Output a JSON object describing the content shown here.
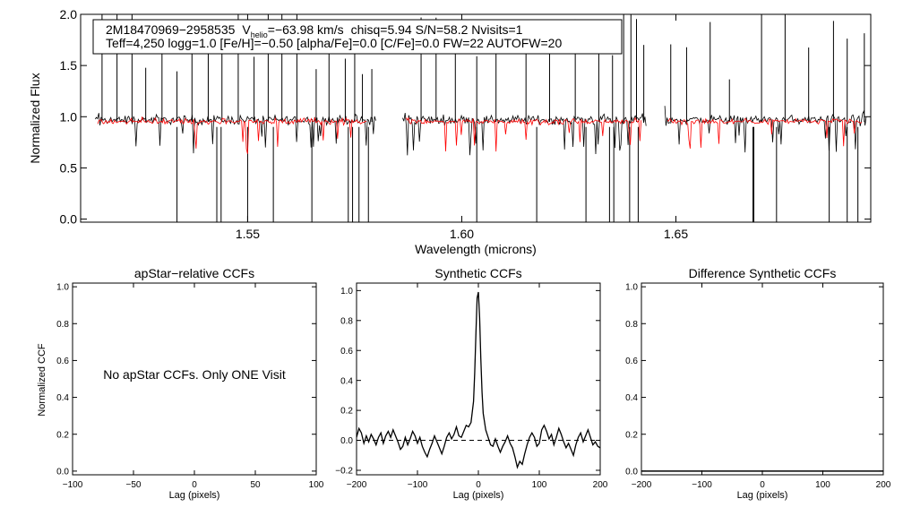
{
  "chart_data": [
    {
      "type": "line",
      "title": "",
      "header": {
        "star_id": "2M18470969−2958535",
        "v_symbol": "V",
        "v_sub": "helio",
        "v_value": "=−63.98 km/s",
        "stats": "chisq=5.94  S/N=58.2  Nvisits=1",
        "params": "Teff=4,250 logg=1.0 [Fe/H]=−0.50 [alpha/Fe]=0.0 [C/Fe]=0.0 FW=22 AUTOFW=20"
      },
      "xlabel": "Wavelength (microns)",
      "ylabel": "Normalized Flux",
      "xlim": [
        1.511,
        1.6955
      ],
      "ylim": [
        -0.03,
        2.0
      ],
      "xticks": [
        1.55,
        1.6,
        1.65
      ],
      "xtick_labels": [
        "1.55",
        "1.60",
        "1.65"
      ],
      "yticks": [
        0.0,
        0.5,
        1.0,
        1.5,
        2.0
      ],
      "ytick_labels": [
        "0.0",
        "0.5",
        "1.0",
        "1.5",
        "2.0"
      ],
      "chip_ranges": [
        [
          1.5144,
          1.5801
        ],
        [
          1.5862,
          1.6432
        ],
        [
          1.6474,
          1.6945
        ]
      ],
      "model_ranges": [
        [
          1.515,
          1.578
        ],
        [
          1.587,
          1.642
        ],
        [
          1.648,
          1.6935
        ]
      ],
      "spikes_up": [
        1.516,
        1.5195,
        1.523,
        1.5262,
        1.53,
        1.5335,
        1.537,
        1.5408,
        1.544,
        1.5478,
        1.5515,
        1.5548,
        1.558,
        1.5615,
        1.566,
        1.569,
        1.5728,
        1.575,
        1.5768,
        1.579,
        1.5905,
        1.594,
        1.5985,
        1.6035,
        1.608,
        1.615,
        1.6205,
        1.6265,
        1.632,
        1.6352,
        1.6378,
        1.6395,
        1.6408,
        1.6425,
        1.6488,
        1.6525,
        1.658,
        1.6625,
        1.67,
        1.6755,
        1.681,
        1.6868,
        1.69,
        1.694
      ],
      "spikes_down": [
        1.5335,
        1.5428,
        1.5438,
        1.55,
        1.556,
        1.565,
        1.5735,
        1.5745,
        1.576,
        1.5782,
        1.6035,
        1.6175,
        1.629,
        1.6345,
        1.6355,
        1.6392,
        1.6412,
        1.668,
        1.6682,
        1.6735,
        1.6858,
        1.69,
        1.6925
      ],
      "series": [
        {
          "name": "observed flux",
          "color": "#000000"
        },
        {
          "name": "best-fit model",
          "color": "#ff0000"
        }
      ]
    },
    {
      "type": "line",
      "title": "apStar−relative CCFs",
      "xlabel": "Lag (pixels)",
      "ylabel": "Normalized CCF",
      "xlim": [
        -100,
        100
      ],
      "ylim": [
        -0.02,
        1.02
      ],
      "xticks": [
        -100,
        -50,
        0,
        50,
        100
      ],
      "xtick_labels": [
        "−100",
        "−50",
        "0",
        "50",
        "100"
      ],
      "yticks": [
        0.0,
        0.2,
        0.4,
        0.6,
        0.8,
        1.0
      ],
      "ytick_labels": [
        "0.0",
        "0.2",
        "0.4",
        "0.6",
        "0.8",
        "1.0"
      ],
      "annotation": "No apStar CCFs.  Only ONE Visit",
      "series": []
    },
    {
      "type": "line",
      "title": "Synthetic CCFs",
      "xlabel": "Lag (pixels)",
      "ylabel": "",
      "xlim": [
        -200,
        200
      ],
      "ylim": [
        -0.23,
        1.05
      ],
      "xticks": [
        -200,
        -100,
        0,
        100,
        200
      ],
      "xtick_labels": [
        "−200",
        "−100",
        "0",
        "100",
        "200"
      ],
      "yticks": [
        -0.2,
        0.0,
        0.2,
        0.4,
        0.6,
        0.8,
        1.0
      ],
      "ytick_labels": [
        "−0.2",
        "0.0",
        "0.2",
        "0.4",
        "0.6",
        "0.8",
        "1.0"
      ],
      "zero_line": 0.0,
      "series": [
        {
          "name": "CCF",
          "color": "#000000",
          "x": [
            -200,
            -196,
            -192,
            -188,
            -184,
            -180,
            -176,
            -172,
            -168,
            -164,
            -160,
            -156,
            -152,
            -148,
            -144,
            -140,
            -136,
            -132,
            -128,
            -124,
            -120,
            -116,
            -112,
            -108,
            -104,
            -100,
            -96,
            -92,
            -88,
            -84,
            -80,
            -76,
            -72,
            -68,
            -64,
            -60,
            -56,
            -52,
            -48,
            -44,
            -40,
            -36,
            -32,
            -28,
            -24,
            -20,
            -16,
            -12,
            -8,
            -6,
            -4,
            -2,
            0,
            2,
            4,
            6,
            8,
            12,
            16,
            20,
            24,
            28,
            32,
            36,
            40,
            44,
            48,
            52,
            56,
            60,
            64,
            68,
            72,
            76,
            80,
            84,
            88,
            92,
            96,
            100,
            104,
            108,
            112,
            116,
            120,
            124,
            128,
            132,
            136,
            140,
            144,
            148,
            152,
            156,
            160,
            164,
            168,
            172,
            176,
            180,
            184,
            188,
            192,
            196,
            200
          ],
          "y": [
            0.02,
            0.08,
            0.05,
            -0.02,
            0.03,
            -0.01,
            0.04,
            0.01,
            -0.03,
            0.02,
            0.05,
            -0.02,
            0.03,
            0.06,
            0.02,
            0.07,
            0.03,
            -0.01,
            -0.06,
            -0.04,
            0.02,
            -0.03,
            0.01,
            0.06,
            0.03,
            -0.02,
            0.02,
            -0.04,
            -0.08,
            -0.11,
            -0.06,
            -0.02,
            0.03,
            -0.01,
            -0.05,
            -0.09,
            -0.04,
            0.02,
            0.05,
            0.01,
            0.04,
            0.09,
            0.03,
            0.02,
            0.06,
            0.1,
            0.09,
            0.12,
            0.26,
            0.45,
            0.72,
            0.95,
            0.99,
            0.82,
            0.55,
            0.32,
            0.18,
            0.07,
            0.02,
            -0.03,
            -0.04,
            0.01,
            -0.04,
            -0.08,
            -0.04,
            -0.01,
            0.03,
            -0.02,
            -0.05,
            -0.11,
            -0.18,
            -0.14,
            -0.16,
            -0.09,
            -0.03,
            0.02,
            0.05,
            0.02,
            -0.04,
            -0.02,
            0.07,
            0.1,
            0.06,
            0.01,
            0.04,
            -0.03,
            0.02,
            0.08,
            0.04,
            -0.01,
            -0.05,
            -0.02,
            -0.06,
            -0.1,
            -0.03,
            0.02,
            0.05,
            -0.01,
            0.03,
            0.07,
            0.02,
            -0.03,
            -0.01,
            -0.04,
            -0.05
          ]
        }
      ]
    },
    {
      "type": "line",
      "title": "Difference Synthetic CCFs",
      "xlabel": "Lag (pixels)",
      "ylabel": "",
      "xlim": [
        -200,
        200
      ],
      "ylim": [
        -0.02,
        1.02
      ],
      "xticks": [
        -200,
        -100,
        0,
        100,
        200
      ],
      "xtick_labels": [
        "−200",
        "−100",
        "0",
        "100",
        "200"
      ],
      "yticks": [
        0.0,
        0.2,
        0.4,
        0.6,
        0.8,
        1.0
      ],
      "ytick_labels": [
        "0.0",
        "0.2",
        "0.4",
        "0.6",
        "0.8",
        "1.0"
      ],
      "series": [
        {
          "name": "difference CCF",
          "color": "#000000",
          "x": [
            -200,
            200
          ],
          "y": [
            0.0,
            0.0
          ]
        }
      ]
    }
  ]
}
